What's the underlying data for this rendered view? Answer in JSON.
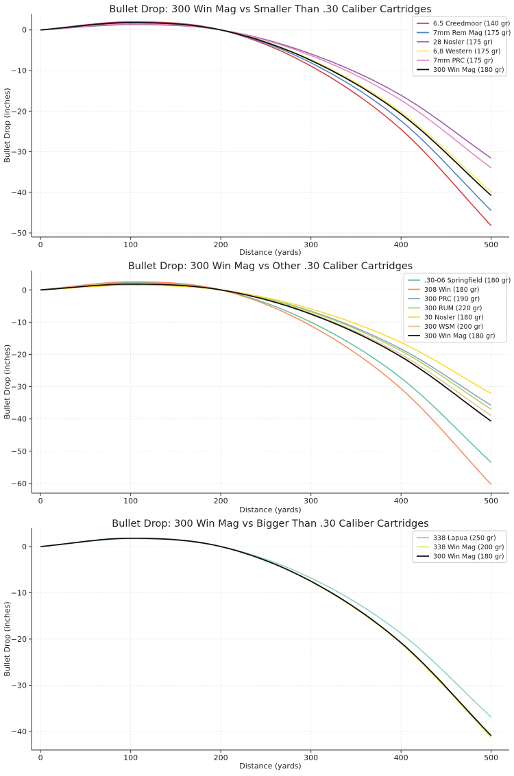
{
  "chart_data": [
    {
      "type": "line",
      "title": "Bullet Drop: 300 Win Mag vs Smaller Than .30 Caliber Cartridges",
      "xlabel": "Distance (yards)",
      "ylabel": "Bullet Drop (inches)",
      "xlim": [
        -10,
        520
      ],
      "ylim": [
        -51,
        4
      ],
      "xticks": [
        0,
        100,
        200,
        300,
        400,
        500
      ],
      "yticks": [
        0,
        -10,
        -20,
        -30,
        -40,
        -50
      ],
      "grid": true,
      "legend": "top-right",
      "series": [
        {
          "name": "6.5 Creedmoor (140 gr)",
          "color": "#d9413e",
          "x": [
            0,
            100,
            200,
            300,
            400,
            500
          ],
          "y": [
            0,
            2.0,
            0,
            -8.9,
            -24.5,
            -48.2
          ]
        },
        {
          "name": "7mm Rem Mag (175 gr)",
          "color": "#4f86c6",
          "x": [
            0,
            100,
            200,
            300,
            400,
            500
          ],
          "y": [
            0,
            1.8,
            0,
            -8.1,
            -22.4,
            -44.5
          ]
        },
        {
          "name": "28 Nosler (175 gr)",
          "color": "#9b5fa8",
          "x": [
            0,
            100,
            200,
            300,
            400,
            500
          ],
          "y": [
            0,
            1.3,
            0,
            -5.9,
            -16.1,
            -31.6
          ]
        },
        {
          "name": "6.8 Western (175 gr)",
          "color": "#f5ee55",
          "x": [
            0,
            100,
            200,
            300,
            400,
            500
          ],
          "y": [
            0,
            1.7,
            0,
            -7.3,
            -20.2,
            -39.9
          ]
        },
        {
          "name": "7mm PRC (175 gr)",
          "color": "#e68ac4",
          "x": [
            0,
            100,
            200,
            300,
            400,
            500
          ],
          "y": [
            0,
            1.5,
            0,
            -6.3,
            -17.3,
            -34.0
          ]
        },
        {
          "name": "300 Win Mag (180 gr)",
          "color": "#111111",
          "x": [
            0,
            100,
            200,
            300,
            400,
            500
          ],
          "y": [
            0,
            1.8,
            0,
            -7.5,
            -20.7,
            -40.8
          ]
        }
      ]
    },
    {
      "type": "line",
      "title": "Bullet Drop: 300 Win Mag vs Other .30 Caliber Cartridges",
      "xlabel": "Distance (yards)",
      "ylabel": "Bullet Drop (inches)",
      "xlim": [
        -10,
        520
      ],
      "ylim": [
        -63,
        6
      ],
      "xticks": [
        0,
        100,
        200,
        300,
        400,
        500
      ],
      "yticks": [
        0,
        -10,
        -20,
        -30,
        -40,
        -50,
        -60
      ],
      "grid": true,
      "legend": "top-right",
      "series": [
        {
          "name": ".30-06 Springfield (180 gr)",
          "color": "#66c2a5",
          "x": [
            0,
            100,
            200,
            300,
            400,
            500
          ],
          "y": [
            0,
            2.3,
            0,
            -10.0,
            -27.3,
            -53.5
          ]
        },
        {
          "name": "308 Win (180 gr)",
          "color": "#fc8d62",
          "x": [
            0,
            100,
            200,
            300,
            400,
            500
          ],
          "y": [
            0,
            2.5,
            0,
            -11.1,
            -30.6,
            -60.3
          ]
        },
        {
          "name": "300 PRC (190 gr)",
          "color": "#8da0cb",
          "x": [
            0,
            100,
            200,
            300,
            400,
            500
          ],
          "y": [
            0,
            1.7,
            0,
            -6.6,
            -18.3,
            -35.8
          ]
        },
        {
          "name": "300 RUM (220 gr)",
          "color": "#a6d854",
          "x": [
            0,
            100,
            200,
            300,
            400,
            500
          ],
          "y": [
            0,
            1.8,
            0,
            -6.8,
            -18.9,
            -37.0
          ]
        },
        {
          "name": "30 Nosler (180 gr)",
          "color": "#ffd92f",
          "x": [
            0,
            100,
            200,
            300,
            400,
            500
          ],
          "y": [
            0,
            1.4,
            0,
            -5.9,
            -16.3,
            -32.1
          ]
        },
        {
          "name": "300 WSM (200 gr)",
          "color": "#e5c494",
          "x": [
            0,
            100,
            200,
            300,
            400,
            500
          ],
          "y": [
            0,
            2.0,
            0,
            -7.3,
            -20.0,
            -39.0
          ]
        },
        {
          "name": "300 Win Mag (180 gr)",
          "color": "#111111",
          "x": [
            0,
            100,
            200,
            300,
            400,
            500
          ],
          "y": [
            0,
            1.8,
            0,
            -7.5,
            -20.7,
            -40.7
          ]
        }
      ]
    },
    {
      "type": "line",
      "title": "Bullet Drop: 300 Win Mag vs Bigger Than .30 Caliber Cartridges",
      "xlabel": "Distance (yards)",
      "ylabel": "Bullet Drop (inches)",
      "xlim": [
        -10,
        520
      ],
      "ylim": [
        -44,
        4
      ],
      "xticks": [
        0,
        100,
        200,
        300,
        400,
        500
      ],
      "yticks": [
        0,
        -10,
        -20,
        -30,
        -40
      ],
      "grid": true,
      "legend": "top-right",
      "series": [
        {
          "name": "338 Lapua (250 gr)",
          "color": "#8dd3c7",
          "x": [
            0,
            100,
            200,
            300,
            400,
            500
          ],
          "y": [
            0,
            1.7,
            0,
            -6.8,
            -18.8,
            -36.9
          ]
        },
        {
          "name": "338 Win Mag (200 gr)",
          "color": "#e4e866",
          "x": [
            0,
            100,
            200,
            300,
            400,
            500
          ],
          "y": [
            0,
            1.8,
            0,
            -7.6,
            -21.0,
            -41.3
          ]
        },
        {
          "name": "300 Win Mag (180 gr)",
          "color": "#111111",
          "x": [
            0,
            100,
            200,
            300,
            400,
            500
          ],
          "y": [
            0,
            1.8,
            0,
            -7.5,
            -20.8,
            -40.9
          ]
        }
      ]
    }
  ]
}
